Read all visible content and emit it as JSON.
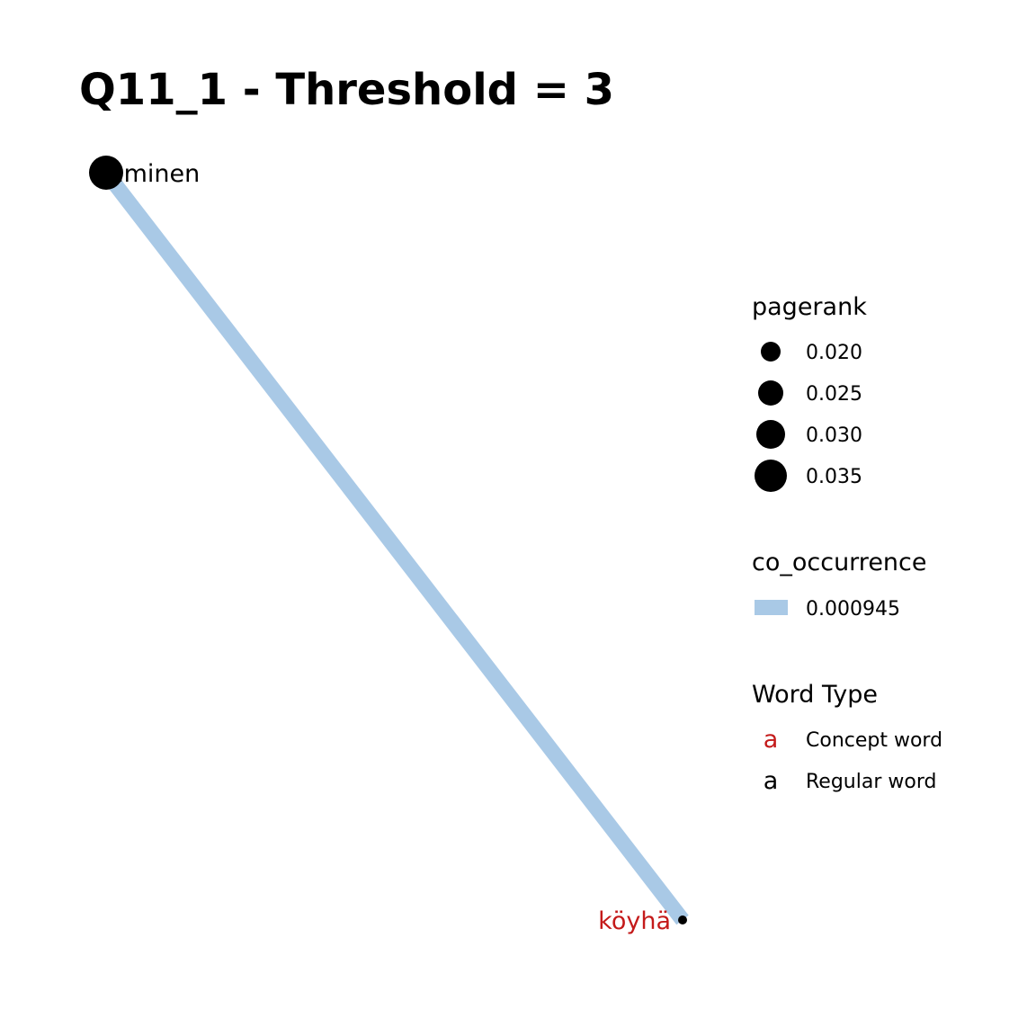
{
  "title": "Q11_1 - Threshold = 3",
  "colors": {
    "edge": "#a9c9e6",
    "node": "#000000",
    "concept_word": "#c41a1a",
    "regular_word": "#000000"
  },
  "network": {
    "nodes": [
      {
        "id": "ihminen",
        "label": "ihminen",
        "word_type": "Regular word"
      },
      {
        "id": "koyha",
        "label": "köyhä",
        "word_type": "Concept word"
      }
    ],
    "edges": [
      {
        "from": "ihminen",
        "to": "koyha",
        "co_occurrence": 0.000945
      }
    ]
  },
  "legend": {
    "pagerank": {
      "title": "pagerank",
      "items": [
        "0.020",
        "0.025",
        "0.030",
        "0.035"
      ]
    },
    "co_occurrence": {
      "title": "co_occurrence",
      "items": [
        "0.000945"
      ]
    },
    "word_type": {
      "title": "Word Type",
      "glyph": "a",
      "items": [
        "Concept word",
        "Regular word"
      ]
    }
  }
}
